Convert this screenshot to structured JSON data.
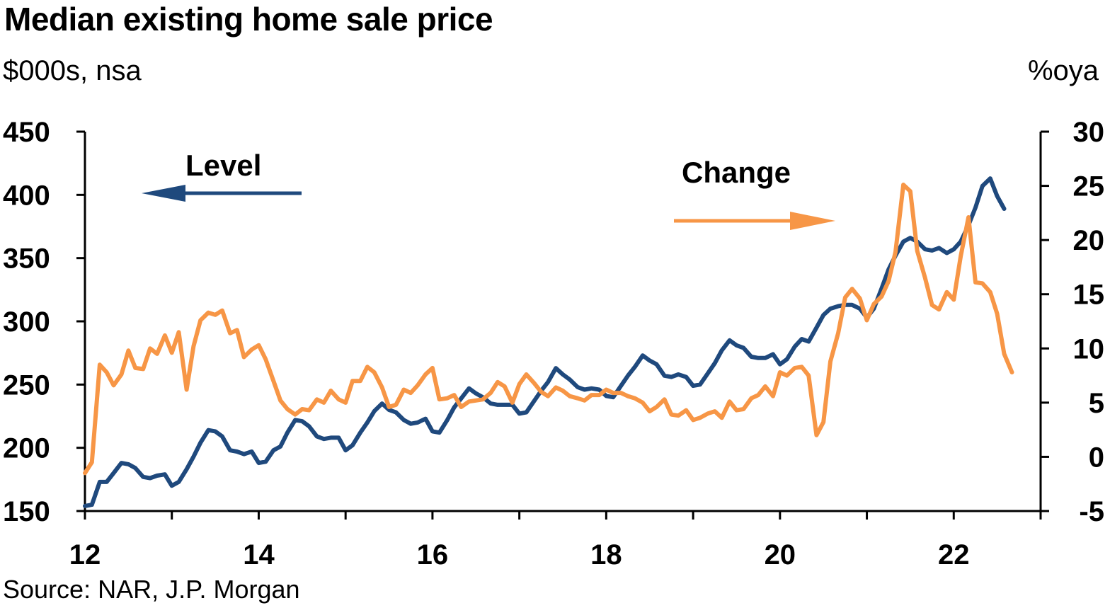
{
  "header": {
    "title": "Median existing home sale price",
    "left_unit": "$000s, nsa",
    "right_unit": "%oya"
  },
  "footer": {
    "source": "Source: NAR, J.P. Morgan"
  },
  "chart_data": {
    "type": "line",
    "title": "Median existing home sale price",
    "x_axis": {
      "min": 2012,
      "max": 2023,
      "tick_values": [
        2012,
        2014,
        2016,
        2018,
        2020,
        2022
      ],
      "tick_labels": [
        "12",
        "14",
        "16",
        "18",
        "20",
        "22"
      ]
    },
    "y_left": {
      "label": "$000s, nsa",
      "min": 150,
      "max": 450,
      "ticks": [
        "450",
        "400",
        "350",
        "300",
        "250",
        "200",
        "150"
      ]
    },
    "y_right": {
      "label": "%oya",
      "min": -5,
      "max": 30,
      "ticks": [
        "30",
        "25",
        "20",
        "15",
        "10",
        "5",
        "0",
        "-5"
      ]
    },
    "grid": false,
    "annotations": [
      {
        "text": "Level",
        "arrow": "left",
        "series": "Level"
      },
      {
        "text": "Change",
        "arrow": "right",
        "series": "Change"
      }
    ],
    "series": [
      {
        "name": "Level",
        "axis": "left",
        "color": "#1f497d",
        "points": [
          [
            2012.0,
            154
          ],
          [
            2012.08,
            155
          ],
          [
            2012.17,
            173
          ],
          [
            2012.25,
            173
          ],
          [
            2012.33,
            180
          ],
          [
            2012.42,
            188
          ],
          [
            2012.5,
            187
          ],
          [
            2012.58,
            184
          ],
          [
            2012.67,
            177
          ],
          [
            2012.75,
            176
          ],
          [
            2012.83,
            178
          ],
          [
            2012.92,
            179
          ],
          [
            2013.0,
            170
          ],
          [
            2013.08,
            173
          ],
          [
            2013.17,
            183
          ],
          [
            2013.25,
            193
          ],
          [
            2013.33,
            204
          ],
          [
            2013.42,
            214
          ],
          [
            2013.5,
            213
          ],
          [
            2013.58,
            209
          ],
          [
            2013.67,
            198
          ],
          [
            2013.75,
            197
          ],
          [
            2013.83,
            195
          ],
          [
            2013.92,
            197
          ],
          [
            2014.0,
            188
          ],
          [
            2014.08,
            189
          ],
          [
            2014.17,
            198
          ],
          [
            2014.25,
            201
          ],
          [
            2014.33,
            212
          ],
          [
            2014.42,
            222
          ],
          [
            2014.5,
            221
          ],
          [
            2014.58,
            217
          ],
          [
            2014.67,
            209
          ],
          [
            2014.75,
            207
          ],
          [
            2014.83,
            208
          ],
          [
            2014.92,
            208
          ],
          [
            2015.0,
            198
          ],
          [
            2015.08,
            202
          ],
          [
            2015.17,
            212
          ],
          [
            2015.25,
            220
          ],
          [
            2015.33,
            229
          ],
          [
            2015.42,
            235
          ],
          [
            2015.5,
            230
          ],
          [
            2015.58,
            228
          ],
          [
            2015.67,
            222
          ],
          [
            2015.75,
            219
          ],
          [
            2015.83,
            220
          ],
          [
            2015.92,
            223
          ],
          [
            2016.0,
            213
          ],
          [
            2016.08,
            212
          ],
          [
            2016.17,
            222
          ],
          [
            2016.25,
            232
          ],
          [
            2016.33,
            239
          ],
          [
            2016.42,
            247
          ],
          [
            2016.5,
            243
          ],
          [
            2016.58,
            240
          ],
          [
            2016.67,
            235
          ],
          [
            2016.75,
            234
          ],
          [
            2016.83,
            234
          ],
          [
            2016.92,
            234
          ],
          [
            2017.0,
            227
          ],
          [
            2017.08,
            228
          ],
          [
            2017.17,
            237
          ],
          [
            2017.25,
            245
          ],
          [
            2017.33,
            252
          ],
          [
            2017.42,
            263
          ],
          [
            2017.5,
            258
          ],
          [
            2017.58,
            254
          ],
          [
            2017.67,
            248
          ],
          [
            2017.75,
            246
          ],
          [
            2017.83,
            247
          ],
          [
            2017.92,
            246
          ],
          [
            2018.0,
            241
          ],
          [
            2018.08,
            240
          ],
          [
            2018.17,
            249
          ],
          [
            2018.25,
            257
          ],
          [
            2018.33,
            264
          ],
          [
            2018.42,
            273
          ],
          [
            2018.5,
            269
          ],
          [
            2018.58,
            266
          ],
          [
            2018.67,
            257
          ],
          [
            2018.75,
            256
          ],
          [
            2018.83,
            258
          ],
          [
            2018.92,
            256
          ],
          [
            2019.0,
            249
          ],
          [
            2019.08,
            250
          ],
          [
            2019.17,
            259
          ],
          [
            2019.25,
            267
          ],
          [
            2019.33,
            277
          ],
          [
            2019.42,
            285
          ],
          [
            2019.5,
            281
          ],
          [
            2019.58,
            279
          ],
          [
            2019.67,
            272
          ],
          [
            2019.75,
            271
          ],
          [
            2019.83,
            271
          ],
          [
            2019.92,
            274
          ],
          [
            2020.0,
            266
          ],
          [
            2020.08,
            270
          ],
          [
            2020.17,
            280
          ],
          [
            2020.25,
            286
          ],
          [
            2020.33,
            284
          ],
          [
            2020.42,
            295
          ],
          [
            2020.5,
            305
          ],
          [
            2020.58,
            310
          ],
          [
            2020.67,
            312
          ],
          [
            2020.75,
            313
          ],
          [
            2020.83,
            313
          ],
          [
            2020.92,
            310
          ],
          [
            2021.0,
            303
          ],
          [
            2021.08,
            310
          ],
          [
            2021.17,
            326
          ],
          [
            2021.25,
            341
          ],
          [
            2021.33,
            352
          ],
          [
            2021.42,
            363
          ],
          [
            2021.5,
            366
          ],
          [
            2021.58,
            363
          ],
          [
            2021.67,
            357
          ],
          [
            2021.75,
            356
          ],
          [
            2021.83,
            358
          ],
          [
            2021.92,
            354
          ],
          [
            2022.0,
            357
          ],
          [
            2022.08,
            363
          ],
          [
            2022.17,
            376
          ],
          [
            2022.25,
            390
          ],
          [
            2022.33,
            407
          ],
          [
            2022.42,
            413
          ],
          [
            2022.5,
            399
          ],
          [
            2022.58,
            389
          ]
        ]
      },
      {
        "name": "Change",
        "axis": "right",
        "color": "#f79646",
        "points": [
          [
            2012.0,
            -1.5
          ],
          [
            2012.08,
            -0.5
          ],
          [
            2012.17,
            8.5
          ],
          [
            2012.25,
            7.8
          ],
          [
            2012.33,
            6.6
          ],
          [
            2012.42,
            7.6
          ],
          [
            2012.5,
            9.8
          ],
          [
            2012.58,
            8.2
          ],
          [
            2012.67,
            8.1
          ],
          [
            2012.75,
            10.0
          ],
          [
            2012.83,
            9.5
          ],
          [
            2012.92,
            11.2
          ],
          [
            2013.0,
            9.6
          ],
          [
            2013.08,
            11.5
          ],
          [
            2013.17,
            6.2
          ],
          [
            2013.25,
            10.2
          ],
          [
            2013.33,
            12.6
          ],
          [
            2013.42,
            13.3
          ],
          [
            2013.5,
            13.1
          ],
          [
            2013.58,
            13.5
          ],
          [
            2013.67,
            11.4
          ],
          [
            2013.75,
            11.7
          ],
          [
            2013.83,
            9.2
          ],
          [
            2013.92,
            9.9
          ],
          [
            2014.0,
            10.3
          ],
          [
            2014.08,
            9.0
          ],
          [
            2014.17,
            7.0
          ],
          [
            2014.25,
            5.2
          ],
          [
            2014.33,
            4.4
          ],
          [
            2014.42,
            3.9
          ],
          [
            2014.5,
            4.4
          ],
          [
            2014.58,
            4.3
          ],
          [
            2014.67,
            5.3
          ],
          [
            2014.75,
            5.0
          ],
          [
            2014.83,
            6.1
          ],
          [
            2014.92,
            5.3
          ],
          [
            2015.0,
            5.0
          ],
          [
            2015.08,
            7.0
          ],
          [
            2015.17,
            7.0
          ],
          [
            2015.25,
            8.3
          ],
          [
            2015.33,
            7.8
          ],
          [
            2015.42,
            6.4
          ],
          [
            2015.5,
            4.6
          ],
          [
            2015.58,
            4.8
          ],
          [
            2015.67,
            6.2
          ],
          [
            2015.75,
            5.9
          ],
          [
            2015.83,
            6.6
          ],
          [
            2015.92,
            7.6
          ],
          [
            2016.0,
            8.2
          ],
          [
            2016.08,
            5.3
          ],
          [
            2016.17,
            5.4
          ],
          [
            2016.25,
            5.7
          ],
          [
            2016.33,
            4.6
          ],
          [
            2016.42,
            5.1
          ],
          [
            2016.5,
            5.2
          ],
          [
            2016.58,
            5.3
          ],
          [
            2016.67,
            5.9
          ],
          [
            2016.75,
            6.9
          ],
          [
            2016.83,
            6.5
          ],
          [
            2016.92,
            5.0
          ],
          [
            2017.0,
            6.7
          ],
          [
            2017.08,
            7.6
          ],
          [
            2017.17,
            6.8
          ],
          [
            2017.25,
            6.0
          ],
          [
            2017.33,
            5.6
          ],
          [
            2017.42,
            6.4
          ],
          [
            2017.5,
            6.1
          ],
          [
            2017.58,
            5.6
          ],
          [
            2017.67,
            5.4
          ],
          [
            2017.75,
            5.2
          ],
          [
            2017.83,
            5.7
          ],
          [
            2017.92,
            5.7
          ],
          [
            2018.0,
            6.2
          ],
          [
            2018.08,
            5.9
          ],
          [
            2018.17,
            5.9
          ],
          [
            2018.25,
            5.6
          ],
          [
            2018.33,
            5.4
          ],
          [
            2018.42,
            5.0
          ],
          [
            2018.5,
            4.2
          ],
          [
            2018.58,
            4.6
          ],
          [
            2018.67,
            5.3
          ],
          [
            2018.75,
            3.9
          ],
          [
            2018.83,
            3.8
          ],
          [
            2018.92,
            4.3
          ],
          [
            2019.0,
            3.4
          ],
          [
            2019.08,
            3.6
          ],
          [
            2019.17,
            4.0
          ],
          [
            2019.25,
            4.2
          ],
          [
            2019.33,
            3.6
          ],
          [
            2019.42,
            5.1
          ],
          [
            2019.5,
            4.3
          ],
          [
            2019.58,
            4.4
          ],
          [
            2019.67,
            5.4
          ],
          [
            2019.75,
            5.7
          ],
          [
            2019.83,
            6.5
          ],
          [
            2019.92,
            5.6
          ],
          [
            2020.0,
            7.8
          ],
          [
            2020.08,
            7.5
          ],
          [
            2020.17,
            8.2
          ],
          [
            2020.25,
            8.3
          ],
          [
            2020.33,
            7.5
          ],
          [
            2020.42,
            2.0
          ],
          [
            2020.5,
            3.2
          ],
          [
            2020.58,
            8.8
          ],
          [
            2020.67,
            11.4
          ],
          [
            2020.75,
            14.7
          ],
          [
            2020.83,
            15.5
          ],
          [
            2020.92,
            14.6
          ],
          [
            2021.0,
            12.6
          ],
          [
            2021.08,
            14.1
          ],
          [
            2021.17,
            14.8
          ],
          [
            2021.25,
            16.2
          ],
          [
            2021.33,
            18.9
          ],
          [
            2021.42,
            25.1
          ],
          [
            2021.5,
            24.5
          ],
          [
            2021.58,
            19.0
          ],
          [
            2021.67,
            16.5
          ],
          [
            2021.75,
            14.0
          ],
          [
            2021.83,
            13.6
          ],
          [
            2021.92,
            15.2
          ],
          [
            2022.0,
            14.5
          ],
          [
            2022.08,
            18.5
          ],
          [
            2022.17,
            22.1
          ],
          [
            2022.25,
            16.1
          ],
          [
            2022.33,
            16.0
          ],
          [
            2022.42,
            15.2
          ],
          [
            2022.5,
            13.2
          ],
          [
            2022.58,
            9.5
          ],
          [
            2022.67,
            7.8
          ]
        ]
      }
    ]
  }
}
